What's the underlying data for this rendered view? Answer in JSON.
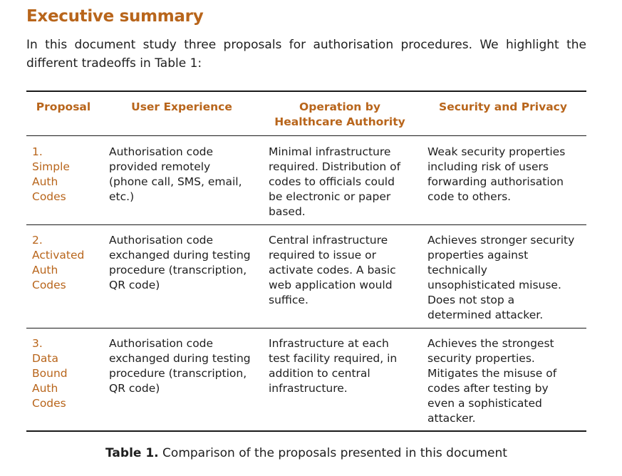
{
  "heading": "Executive summary",
  "intro": "In this document study three proposals for authorisation procedures. We highlight the different tradeoffs in Table 1:",
  "table": {
    "headers": {
      "proposal": "Proposal",
      "ux": "User Experience",
      "operation": "Operation by Healthcare Authority",
      "security": "Security and Privacy"
    },
    "rows": [
      {
        "proposal": "1.\nSimple\nAuth\nCodes",
        "ux": "Authorisation code\nprovided remotely\n(phone call, SMS, email,\netc.)",
        "operation": "Minimal infrastructure\nrequired. Distribution of\ncodes to officials could\nbe electronic or paper\nbased.",
        "security": "Weak security properties\nincluding risk of users\nforwarding authorisation\ncode to others."
      },
      {
        "proposal": "2.\nActivated\nAuth\nCodes",
        "ux": "Authorisation code\nexchanged during testing\nprocedure (transcription,\nQR code)",
        "operation": "Central infrastructure\nrequired to issue or\nactivate codes. A basic\nweb application would\nsuffice.",
        "security": "Achieves stronger security\nproperties against\ntechnically\nunsophisticated misuse.\nDoes not stop a\ndetermined attacker."
      },
      {
        "proposal": "3.\nData\nBound\nAuth\nCodes",
        "ux": "Authorisation code\nexchanged during testing\nprocedure (transcription,\nQR code)",
        "operation": "Infrastructure at each\ntest facility required, in\naddition to central\ninfrastructure.",
        "security": "Achieves the strongest\nsecurity properties.\nMitigates the misuse of\ncodes after testing by\neven a sophisticated\nattacker."
      }
    ]
  },
  "caption": {
    "label": "Table 1.",
    "text": "Comparison of the proposals presented in this document"
  },
  "colors": {
    "accent": "#b8651b",
    "text": "#1e1e1e"
  }
}
